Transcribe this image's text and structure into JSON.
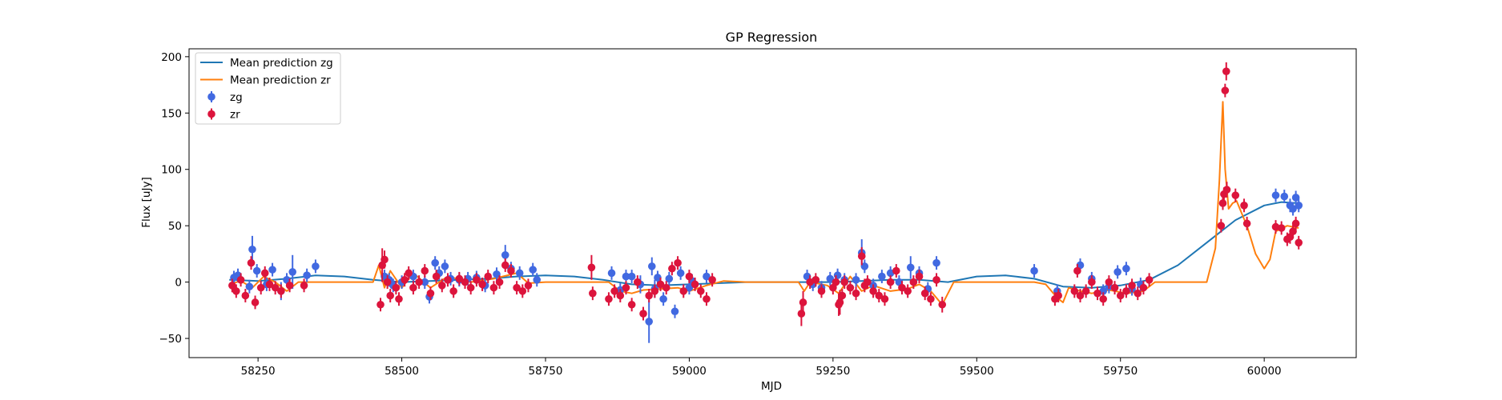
{
  "chart_data": {
    "type": "scatter",
    "title": "GP Regression",
    "xlabel": "MJD",
    "ylabel": "Flux [uJy]",
    "xlim": [
      58130,
      60160
    ],
    "ylim": [
      -67,
      207
    ],
    "x_ticks": [
      58250,
      58500,
      58750,
      59000,
      59250,
      59500,
      59750,
      60000
    ],
    "y_ticks": [
      -50,
      0,
      50,
      100,
      150,
      200
    ],
    "legend_position": "upper-left",
    "grid": false,
    "colors": {
      "zg_line": "#1f77b4",
      "zr_line": "#ff7f0e",
      "zg_points": "#4169e1",
      "zr_points": "#dc143c"
    },
    "legend": [
      {
        "label": "Mean prediction zg",
        "kind": "line",
        "color": "#1f77b4"
      },
      {
        "label": "Mean prediction zr",
        "kind": "line",
        "color": "#ff7f0e"
      },
      {
        "label": "zg",
        "kind": "errorbar",
        "color": "#4169e1"
      },
      {
        "label": "zr",
        "kind": "errorbar",
        "color": "#dc143c"
      }
    ],
    "series": [
      {
        "name": "Mean prediction zg",
        "type": "line",
        "color": "#1f77b4",
        "x": [
          58200,
          58250,
          58300,
          58350,
          58400,
          58450,
          58500,
          58550,
          58600,
          58650,
          58700,
          58750,
          58800,
          58850,
          58900,
          58950,
          59000,
          59050,
          59100,
          59150,
          59200,
          59250,
          59300,
          59350,
          59400,
          59450,
          59500,
          59550,
          59600,
          59650,
          59700,
          59750,
          59800,
          59850,
          59900,
          59950,
          60000,
          60030,
          60060
        ],
        "y": [
          2,
          1,
          3,
          6,
          5,
          2,
          0,
          1,
          2,
          3,
          5,
          6,
          5,
          2,
          -2,
          -3,
          -2,
          -1,
          0,
          0,
          0,
          0,
          1,
          2,
          2,
          0,
          5,
          6,
          3,
          -4,
          -5,
          -3,
          2,
          15,
          35,
          55,
          68,
          71,
          70
        ]
      },
      {
        "name": "Mean prediction zr",
        "type": "line",
        "color": "#ff7f0e",
        "x": [
          58200,
          58220,
          58240,
          58260,
          58280,
          58300,
          58320,
          58350,
          58400,
          58450,
          58460,
          58470,
          58480,
          58500,
          58520,
          58550,
          58580,
          58620,
          58660,
          58700,
          58720,
          58750,
          58800,
          58830,
          58860,
          58880,
          58900,
          58920,
          58950,
          58980,
          59000,
          59030,
          59060,
          59100,
          59150,
          59190,
          59200,
          59210,
          59240,
          59260,
          59280,
          59300,
          59320,
          59350,
          59380,
          59400,
          59420,
          59440,
          59460,
          59500,
          59600,
          59620,
          59640,
          59650,
          59660,
          59680,
          59700,
          59730,
          59760,
          59790,
          59810,
          59850,
          59900,
          59915,
          59922,
          59928,
          59932,
          59938,
          59945,
          59952,
          59960,
          59970,
          59985,
          60000,
          60010,
          60020,
          60040,
          60060
        ],
        "y": [
          -2,
          1,
          -5,
          5,
          0,
          -8,
          0,
          0,
          0,
          0,
          15,
          -5,
          10,
          -5,
          8,
          -5,
          5,
          0,
          3,
          8,
          -1,
          0,
          0,
          0,
          0,
          -8,
          -10,
          -7,
          -6,
          -5,
          -8,
          -3,
          1,
          0,
          0,
          0,
          -8,
          0,
          -3,
          -10,
          5,
          -8,
          -3,
          -8,
          -6,
          -2,
          -8,
          -20,
          0,
          0,
          0,
          -2,
          -14,
          -18,
          -5,
          -8,
          -10,
          -7,
          -10,
          -8,
          0,
          0,
          0,
          30,
          90,
          160,
          100,
          65,
          70,
          72,
          62,
          50,
          25,
          12,
          20,
          45,
          50,
          48
        ]
      },
      {
        "name": "zg",
        "type": "errorbar",
        "color": "#4169e1",
        "x": [
          58208,
          58215,
          58235,
          58240,
          58248,
          58265,
          58275,
          58290,
          58300,
          58310,
          58335,
          58350,
          58470,
          58478,
          58485,
          58500,
          58520,
          58540,
          58548,
          58558,
          58565,
          58575,
          58585,
          58600,
          58615,
          58630,
          58645,
          58665,
          58680,
          58690,
          58705,
          58728,
          58735,
          58865,
          58880,
          58890,
          58900,
          58915,
          58930,
          58935,
          58940,
          58945,
          58955,
          58965,
          58975,
          58985,
          59000,
          59005,
          59030,
          59205,
          59215,
          59230,
          59245,
          59258,
          59270,
          59290,
          59300,
          59305,
          59320,
          59335,
          59350,
          59365,
          59385,
          59400,
          59415,
          59430,
          59600,
          59640,
          59680,
          59700,
          59720,
          59730,
          59745,
          59760,
          59770,
          59785,
          60020,
          60035,
          60045,
          60050,
          60055,
          60060
        ],
        "y": [
          4,
          6,
          -4,
          29,
          10,
          -2,
          11,
          -8,
          2,
          9,
          6,
          14,
          5,
          2,
          -3,
          0,
          5,
          0,
          -13,
          17,
          8,
          14,
          3,
          2,
          3,
          4,
          -3,
          7,
          24,
          12,
          8,
          11,
          2,
          8,
          -7,
          5,
          5,
          -2,
          -35,
          14,
          -6,
          4,
          -15,
          3,
          -26,
          8,
          -5,
          1,
          5,
          5,
          -2,
          -5,
          3,
          6,
          2,
          2,
          26,
          14,
          -3,
          5,
          8,
          0,
          13,
          8,
          -6,
          17,
          10,
          -8,
          15,
          3,
          -8,
          -4,
          9,
          12,
          -6,
          -2,
          77,
          76,
          68,
          65,
          75,
          68
        ],
        "err": [
          6,
          6,
          6,
          12,
          6,
          6,
          6,
          8,
          6,
          15,
          6,
          6,
          6,
          6,
          6,
          6,
          6,
          6,
          6,
          6,
          6,
          6,
          6,
          6,
          6,
          6,
          6,
          6,
          9,
          6,
          6,
          6,
          6,
          6,
          6,
          6,
          6,
          8,
          19,
          8,
          8,
          6,
          6,
          6,
          6,
          6,
          6,
          6,
          6,
          6,
          6,
          6,
          6,
          6,
          6,
          6,
          12,
          6,
          6,
          6,
          6,
          6,
          10,
          6,
          6,
          6,
          6,
          6,
          6,
          6,
          6,
          6,
          6,
          6,
          6,
          6,
          6,
          6,
          6,
          6,
          6,
          6
        ]
      },
      {
        "name": "zr",
        "type": "errorbar",
        "color": "#dc143c",
        "x": [
          58205,
          58212,
          58220,
          58228,
          58238,
          58245,
          58255,
          58262,
          58270,
          58280,
          58290,
          58305,
          58330,
          58463,
          58466,
          58470,
          58475,
          58480,
          58490,
          58495,
          58505,
          58512,
          58520,
          58530,
          58540,
          58550,
          58560,
          58570,
          58580,
          58590,
          58600,
          58610,
          58620,
          58630,
          58640,
          58650,
          58660,
          58670,
          58680,
          58690,
          58700,
          58710,
          58720,
          58830,
          58832,
          58860,
          58870,
          58880,
          58890,
          58900,
          58910,
          58920,
          58930,
          58940,
          58950,
          58960,
          58970,
          58980,
          58990,
          59000,
          59010,
          59020,
          59030,
          59040,
          59195,
          59198,
          59210,
          59220,
          59230,
          59250,
          59255,
          59260,
          59262,
          59266,
          59270,
          59280,
          59290,
          59300,
          59305,
          59310,
          59320,
          59330,
          59340,
          59350,
          59360,
          59370,
          59380,
          59390,
          59400,
          59410,
          59420,
          59430,
          59440,
          59636,
          59642,
          59670,
          59675,
          59680,
          59690,
          59700,
          59710,
          59720,
          59730,
          59740,
          59750,
          59760,
          59770,
          59780,
          59790,
          59800,
          59925,
          59928,
          59930,
          59932,
          59934,
          59935,
          59950,
          59965,
          59970,
          60020,
          60030,
          60040,
          60045,
          60050,
          60055,
          60060
        ],
        "y": [
          -3,
          -8,
          2,
          -12,
          17,
          -18,
          -5,
          8,
          -2,
          -5,
          -8,
          -3,
          -3,
          -20,
          15,
          20,
          0,
          -12,
          -5,
          -15,
          2,
          8,
          -5,
          0,
          10,
          -10,
          5,
          -3,
          2,
          -8,
          3,
          0,
          -5,
          2,
          -2,
          5,
          -5,
          0,
          15,
          10,
          -5,
          -8,
          -3,
          13,
          -10,
          -15,
          -8,
          -12,
          -5,
          -20,
          0,
          -28,
          -12,
          -8,
          -2,
          -5,
          12,
          17,
          -8,
          5,
          -2,
          -8,
          -15,
          2,
          -28,
          -18,
          0,
          2,
          -8,
          -5,
          0,
          -20,
          -18,
          -12,
          0,
          -5,
          -10,
          23,
          -3,
          0,
          -8,
          -12,
          -15,
          0,
          10,
          -5,
          -8,
          0,
          5,
          -10,
          -15,
          2,
          -20,
          -15,
          -12,
          -8,
          10,
          -12,
          -8,
          0,
          -10,
          -15,
          0,
          -5,
          -12,
          -8,
          -3,
          -10,
          -5,
          2,
          50,
          70,
          78,
          170,
          187,
          82,
          77,
          68,
          52,
          49,
          48,
          38,
          40,
          45,
          52,
          35
        ],
        "err": [
          6,
          6,
          6,
          6,
          6,
          6,
          6,
          6,
          6,
          6,
          6,
          6,
          6,
          6,
          15,
          8,
          6,
          6,
          6,
          6,
          6,
          6,
          6,
          6,
          6,
          6,
          6,
          6,
          6,
          6,
          6,
          6,
          6,
          6,
          6,
          6,
          6,
          6,
          6,
          6,
          6,
          6,
          6,
          11,
          6,
          6,
          6,
          6,
          6,
          6,
          6,
          6,
          6,
          6,
          6,
          6,
          6,
          6,
          6,
          6,
          6,
          6,
          6,
          6,
          11,
          10,
          6,
          6,
          6,
          6,
          6,
          10,
          11,
          6,
          6,
          6,
          6,
          8,
          6,
          6,
          6,
          6,
          6,
          6,
          6,
          6,
          6,
          6,
          6,
          6,
          6,
          6,
          7,
          6,
          6,
          6,
          6,
          6,
          6,
          6,
          6,
          6,
          6,
          6,
          6,
          6,
          6,
          6,
          6,
          6,
          6,
          6,
          6,
          6,
          8,
          7,
          6,
          6,
          6,
          6,
          6,
          6,
          6,
          6,
          6,
          6
        ]
      }
    ]
  }
}
